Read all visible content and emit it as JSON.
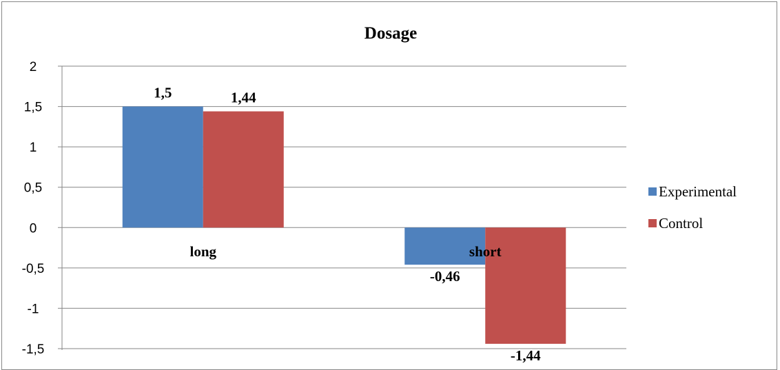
{
  "chart_data": {
    "type": "bar",
    "title": "Dosage",
    "categories": [
      "long",
      "short"
    ],
    "series": [
      {
        "name": "Experimental",
        "values": [
          1.5,
          -0.46
        ],
        "labels": [
          "1,5",
          "-0,46"
        ],
        "color": "#4F81BD"
      },
      {
        "name": "Control",
        "values": [
          1.44,
          -1.44
        ],
        "labels": [
          "1,44",
          "-1,44"
        ],
        "color": "#C0504D"
      }
    ],
    "ylim": [
      -1.5,
      2
    ],
    "yticks": [
      2,
      1.5,
      1,
      0.5,
      0,
      -0.5,
      -1,
      -1.5
    ],
    "ytick_labels": [
      "2",
      "1,5",
      "1",
      "0,5",
      "0",
      "-0,5",
      "-1",
      "-1,5"
    ],
    "grid": true,
    "legend_position": "right",
    "xlabel": "",
    "ylabel": ""
  }
}
